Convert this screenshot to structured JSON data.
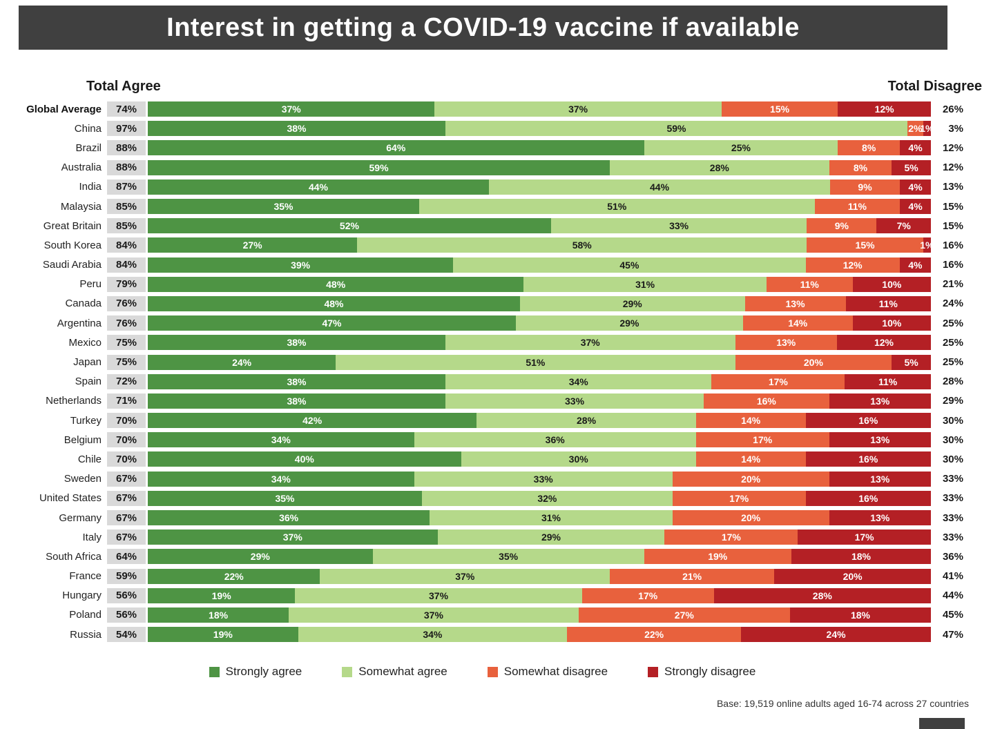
{
  "title": "Interest in getting a COVID-19 vaccine if available",
  "left_header": "Total Agree",
  "right_header": "Total Disagree",
  "footnote": "Base: 19,519 online adults aged 16-74 across 27 countries",
  "colors": {
    "title_bar": "#404040",
    "total_agree_bg": "#d9d9d9"
  },
  "legend": [
    {
      "label": "Strongly agree",
      "color": "#4e9444"
    },
    {
      "label": "Somewhat agree",
      "color": "#b5d98a"
    },
    {
      "label": "Somewhat disagree",
      "color": "#e8613d"
    },
    {
      "label": "Strongly disagree",
      "color": "#b42025"
    }
  ],
  "chart_data": {
    "type": "bar",
    "stacked": true,
    "orientation": "horizontal",
    "unit": "%",
    "x_range": [
      0,
      100
    ],
    "title": "Interest in getting a COVID-19 vaccine if available",
    "series": [
      "Strongly agree",
      "Somewhat agree",
      "Somewhat disagree",
      "Strongly disagree"
    ],
    "rows": [
      {
        "country": "Global Average",
        "total_agree": 74,
        "values": [
          37,
          37,
          15,
          12
        ],
        "total_disagree": 26
      },
      {
        "country": "China",
        "total_agree": 97,
        "values": [
          38,
          59,
          2,
          1
        ],
        "total_disagree": 3
      },
      {
        "country": "Brazil",
        "total_agree": 88,
        "values": [
          64,
          25,
          8,
          4
        ],
        "total_disagree": 12
      },
      {
        "country": "Australia",
        "total_agree": 88,
        "values": [
          59,
          28,
          8,
          5
        ],
        "total_disagree": 12
      },
      {
        "country": "India",
        "total_agree": 87,
        "values": [
          44,
          44,
          9,
          4
        ],
        "total_disagree": 13
      },
      {
        "country": "Malaysia",
        "total_agree": 85,
        "values": [
          35,
          51,
          11,
          4
        ],
        "total_disagree": 15
      },
      {
        "country": "Great Britain",
        "total_agree": 85,
        "values": [
          52,
          33,
          9,
          7
        ],
        "total_disagree": 15
      },
      {
        "country": "South Korea",
        "total_agree": 84,
        "values": [
          27,
          58,
          15,
          1
        ],
        "total_disagree": 16
      },
      {
        "country": "Saudi Arabia",
        "total_agree": 84,
        "values": [
          39,
          45,
          12,
          4
        ],
        "total_disagree": 16
      },
      {
        "country": "Peru",
        "total_agree": 79,
        "values": [
          48,
          31,
          11,
          10
        ],
        "total_disagree": 21
      },
      {
        "country": "Canada",
        "total_agree": 76,
        "values": [
          48,
          29,
          13,
          11
        ],
        "total_disagree": 24
      },
      {
        "country": "Argentina",
        "total_agree": 76,
        "values": [
          47,
          29,
          14,
          10
        ],
        "total_disagree": 25
      },
      {
        "country": "Mexico",
        "total_agree": 75,
        "values": [
          38,
          37,
          13,
          12
        ],
        "total_disagree": 25
      },
      {
        "country": "Japan",
        "total_agree": 75,
        "values": [
          24,
          51,
          20,
          5
        ],
        "total_disagree": 25
      },
      {
        "country": "Spain",
        "total_agree": 72,
        "values": [
          38,
          34,
          17,
          11
        ],
        "total_disagree": 28
      },
      {
        "country": "Netherlands",
        "total_agree": 71,
        "values": [
          38,
          33,
          16,
          13
        ],
        "total_disagree": 29
      },
      {
        "country": "Turkey",
        "total_agree": 70,
        "values": [
          42,
          28,
          14,
          16
        ],
        "total_disagree": 30
      },
      {
        "country": "Belgium",
        "total_agree": 70,
        "values": [
          34,
          36,
          17,
          13
        ],
        "total_disagree": 30
      },
      {
        "country": "Chile",
        "total_agree": 70,
        "values": [
          40,
          30,
          14,
          16
        ],
        "total_disagree": 30
      },
      {
        "country": "Sweden",
        "total_agree": 67,
        "values": [
          34,
          33,
          20,
          13
        ],
        "total_disagree": 33
      },
      {
        "country": "United States",
        "total_agree": 67,
        "values": [
          35,
          32,
          17,
          16
        ],
        "total_disagree": 33
      },
      {
        "country": "Germany",
        "total_agree": 67,
        "values": [
          36,
          31,
          20,
          13
        ],
        "total_disagree": 33
      },
      {
        "country": "Italy",
        "total_agree": 67,
        "values": [
          37,
          29,
          17,
          17
        ],
        "total_disagree": 33
      },
      {
        "country": "South Africa",
        "total_agree": 64,
        "values": [
          29,
          35,
          19,
          18
        ],
        "total_disagree": 36
      },
      {
        "country": "France",
        "total_agree": 59,
        "values": [
          22,
          37,
          21,
          20
        ],
        "total_disagree": 41
      },
      {
        "country": "Hungary",
        "total_agree": 56,
        "values": [
          19,
          37,
          17,
          28
        ],
        "total_disagree": 44
      },
      {
        "country": "Poland",
        "total_agree": 56,
        "values": [
          18,
          37,
          27,
          18
        ],
        "total_disagree": 45
      },
      {
        "country": "Russia",
        "total_agree": 54,
        "values": [
          19,
          34,
          22,
          24
        ],
        "total_disagree": 47
      }
    ]
  }
}
